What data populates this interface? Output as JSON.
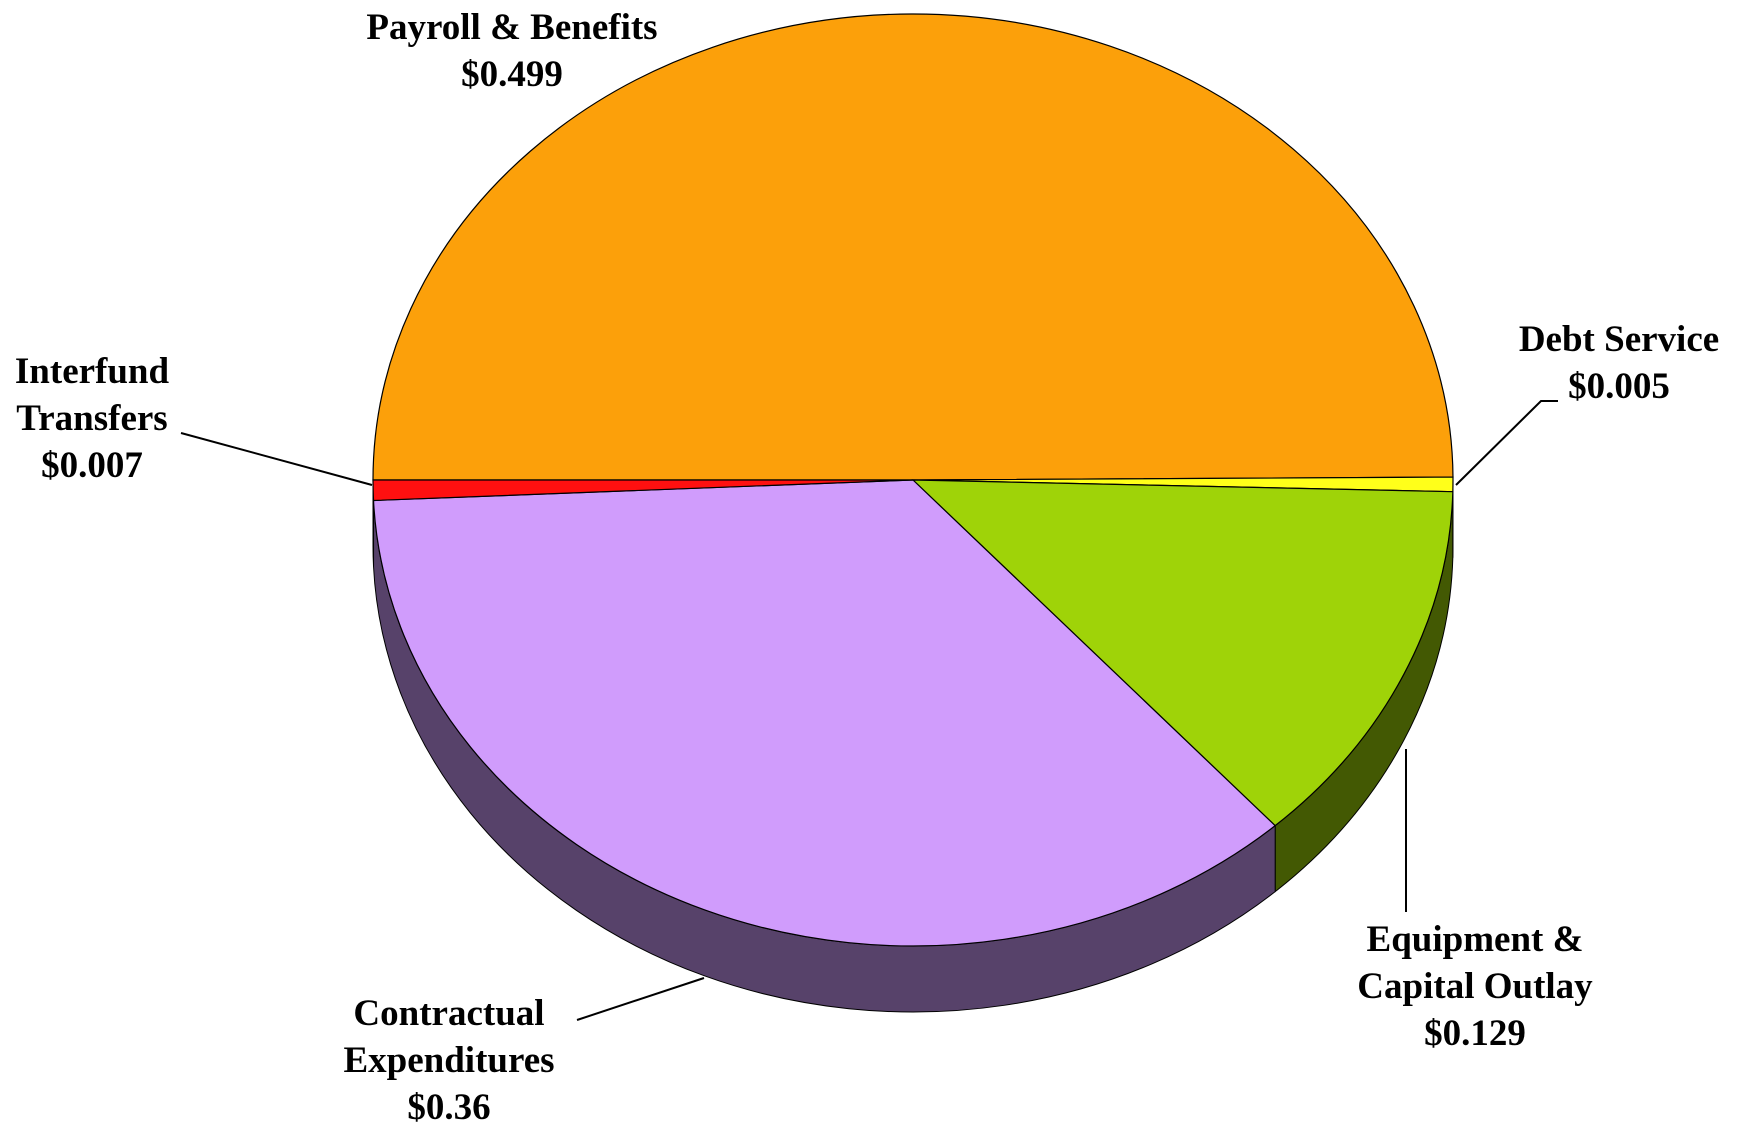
{
  "chart_data": {
    "type": "pie",
    "categories": [
      "Payroll & Benefits",
      "Debt Service",
      "Equipment & Capital Outlay",
      "Contractual Expenditures",
      "Interfund Transfers"
    ],
    "values": [
      0.499,
      0.005,
      0.129,
      0.36,
      0.007
    ],
    "value_labels": [
      "$0.499",
      "$0.005",
      "$0.129",
      "$0.36",
      "$0.007"
    ],
    "colors": [
      "#fca00a",
      "#ffff1a",
      "#9fd308",
      "#d09cfc",
      "#ff1010"
    ]
  }
}
